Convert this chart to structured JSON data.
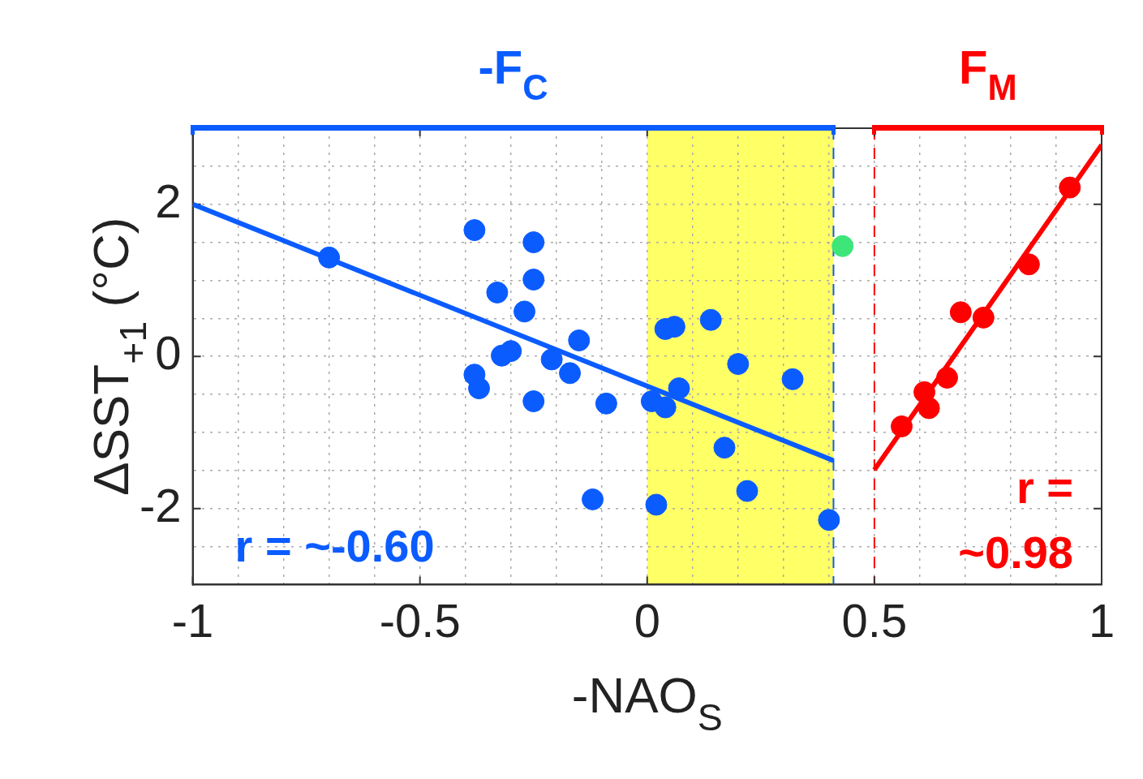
{
  "chart_data": {
    "type": "scatter",
    "xlabel": "-NAO$_{S}$",
    "ylabel": "ΔSST$_{+1}$ (°C)",
    "xlim": [
      -1,
      1
    ],
    "ylim": [
      -3,
      3
    ],
    "xticks": [
      -1,
      {
        "value": -0.9,
        "label": null
      },
      {
        "value": -0.8,
        "label": null
      },
      {
        "value": -0.7,
        "label": null
      },
      {
        "value": -0.6,
        "label": null
      },
      -0.5,
      {
        "value": -0.4,
        "label": null
      },
      {
        "value": -0.3,
        "label": null
      },
      {
        "value": -0.2,
        "label": null
      },
      {
        "value": -0.1,
        "label": null
      },
      0,
      {
        "value": 0.1,
        "label": null
      },
      {
        "value": 0.2,
        "label": null
      },
      {
        "value": 0.3,
        "label": null
      },
      {
        "value": 0.4,
        "label": null
      },
      0.5,
      {
        "value": 0.6,
        "label": null
      },
      {
        "value": 0.7,
        "label": null
      },
      {
        "value": 0.8,
        "label": null
      },
      {
        "value": 0.9,
        "label": null
      },
      1
    ],
    "yticks": [
      {
        "value": -2.5,
        "label": null
      },
      -2,
      {
        "value": -1.5,
        "label": null
      },
      {
        "value": -1,
        "label": null
      },
      {
        "value": -0.5,
        "label": null
      },
      0,
      {
        "value": 0.5,
        "label": null
      },
      {
        "value": 1,
        "label": null
      },
      {
        "value": 1.5,
        "label": null
      },
      2,
      {
        "value": 2.5,
        "label": null
      }
    ],
    "grid": true,
    "marker": "circle",
    "legend": false,
    "series": [
      {
        "color": "#0b5cff",
        "x": [
          -0.7,
          -0.38,
          -0.25,
          -0.25,
          -0.33,
          -0.27,
          -0.15,
          -0.32,
          -0.3,
          -0.21,
          -0.38,
          -0.37,
          -0.17,
          -0.25,
          -0.09,
          -0.12,
          0.01,
          0.04,
          0.04,
          0.06,
          0.14,
          0.07,
          0.2,
          0.32,
          0.17,
          0.02,
          0.22,
          0.4
        ],
        "values": [
          1.3,
          1.66,
          1.5,
          1.01,
          0.84,
          0.59,
          0.21,
          0.01,
          0.07,
          -0.04,
          -0.24,
          -0.42,
          -0.22,
          -0.59,
          -0.62,
          -1.88,
          -0.59,
          -0.67,
          0.36,
          0.39,
          0.48,
          -0.42,
          -0.1,
          -0.3,
          -1.2,
          -1.95,
          -1.77,
          -2.15
        ]
      },
      {
        "color": "#3ee67a",
        "x": [
          0.43
        ],
        "values": [
          1.45
        ]
      },
      {
        "color": "#ff0000",
        "x": [
          0.56,
          0.61,
          0.62,
          0.66,
          0.69,
          0.74,
          0.84,
          0.93
        ],
        "values": [
          -0.92,
          -0.47,
          -0.68,
          -0.28,
          0.58,
          0.51,
          1.21,
          2.22
        ]
      },
      {
        "type": "line",
        "color": "#0b5cff",
        "x": [
          -1,
          0.41
        ],
        "values": [
          2.0,
          -1.37
        ],
        "marker": "none"
      },
      {
        "type": "line",
        "color": "#ff0000",
        "x": [
          0.5,
          1
        ],
        "values": [
          -1.49,
          2.78
        ],
        "marker": "none"
      }
    ],
    "bands": [
      {
        "axis": "x",
        "from": 0,
        "to": 0.41,
        "color": "#ffff66"
      }
    ],
    "ref_lines": [
      {
        "axis": "x",
        "value": 0.41,
        "color": "#0b5cff",
        "line_style": "dashed"
      },
      {
        "axis": "x",
        "value": 0.5,
        "color": "#ff0000",
        "line_style": "dashed"
      }
    ],
    "annotations": [
      "-F$_{C}$",
      "F$_{M}$",
      "r = ~-0.60",
      "r = ~0.98"
    ]
  }
}
